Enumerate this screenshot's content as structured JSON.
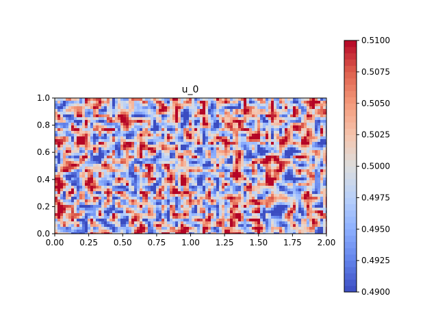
{
  "chart_data": {
    "type": "heatmap",
    "title": "u_0",
    "xlabel": "",
    "ylabel": "",
    "xlim": [
      0.0,
      2.0
    ],
    "ylim": [
      0.0,
      1.0
    ],
    "x_ticks": [
      "0.00",
      "0.25",
      "0.50",
      "0.75",
      "1.00",
      "1.25",
      "1.50",
      "1.75",
      "2.00"
    ],
    "y_ticks": [
      "0.0",
      "0.2",
      "0.4",
      "0.6",
      "0.8",
      "1.0"
    ],
    "colorbar": {
      "range": [
        0.49,
        0.51
      ],
      "ticks": [
        "0.4900",
        "0.4925",
        "0.4950",
        "0.4975",
        "0.5000",
        "0.5025",
        "0.5050",
        "0.5075",
        "0.5100"
      ],
      "colormap": "coolwarm",
      "levels": 40,
      "color_low": "#3b4cc0",
      "color_mid": "#dddddd",
      "color_high": "#b40426"
    },
    "field": {
      "description_of_values": "random noise field around 0.5",
      "mean": 0.5,
      "amplitude": 0.01
    }
  }
}
